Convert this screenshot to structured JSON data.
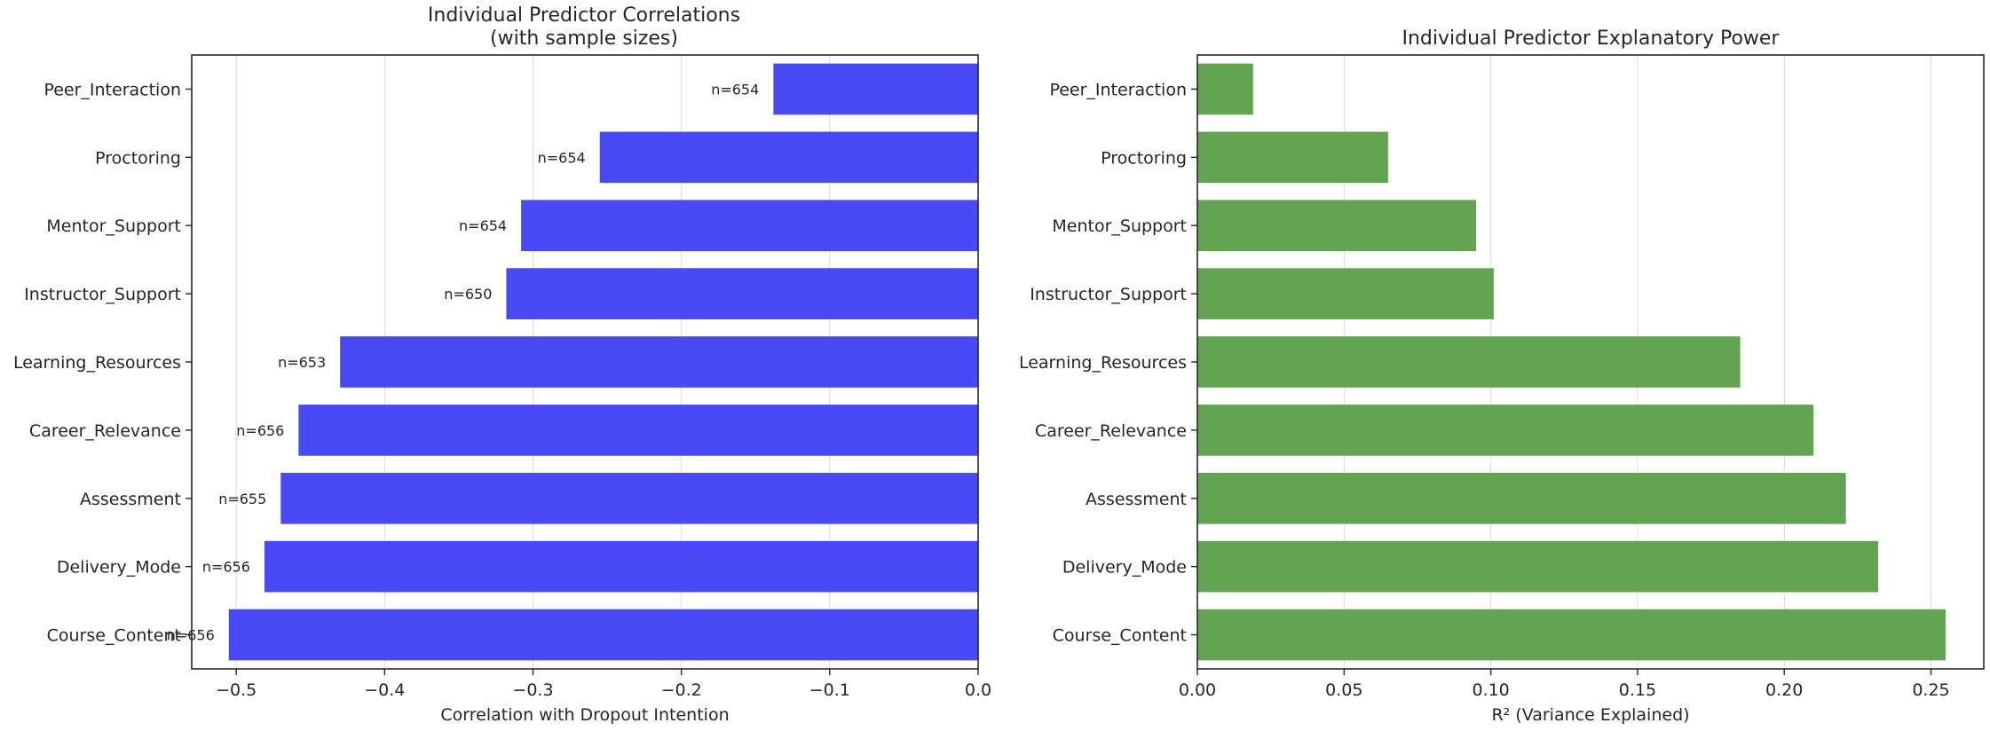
{
  "colors": {
    "left_bars": "#4a4af5",
    "right_bars": "#62a354"
  },
  "chart_data": [
    {
      "type": "bar",
      "orientation": "horizontal",
      "title": "Individual Predictor Correlations",
      "subtitle": "(with sample sizes)",
      "xlabel": "Correlation with Dropout Intention",
      "ylabel": "",
      "xlim": [
        -0.53,
        0.0
      ],
      "xticks": [
        -0.5,
        -0.4,
        -0.3,
        -0.2,
        -0.1,
        0.0
      ],
      "xtick_labels": [
        "−0.5",
        "−0.4",
        "−0.3",
        "−0.2",
        "−0.1",
        "0.0"
      ],
      "grid": true,
      "categories": [
        "Peer_Interaction",
        "Proctoring",
        "Mentor_Support",
        "Instructor_Support",
        "Learning_Resources",
        "Career_Relevance",
        "Assessment",
        "Delivery_Mode",
        "Course_Content"
      ],
      "values": [
        -0.138,
        -0.255,
        -0.308,
        -0.318,
        -0.43,
        -0.458,
        -0.47,
        -0.481,
        -0.505
      ],
      "annotations": [
        "n=654",
        "n=654",
        "n=654",
        "n=650",
        "n=653",
        "n=656",
        "n=655",
        "n=656",
        "n=656"
      ]
    },
    {
      "type": "bar",
      "orientation": "horizontal",
      "title": "Individual Predictor Explanatory Power",
      "xlabel": "R² (Variance Explained)",
      "ylabel": "",
      "xlim": [
        0.0,
        0.268
      ],
      "xticks": [
        0.0,
        0.05,
        0.1,
        0.15,
        0.2,
        0.25
      ],
      "xtick_labels": [
        "0.00",
        "0.05",
        "0.10",
        "0.15",
        "0.20",
        "0.25"
      ],
      "grid": true,
      "categories": [
        "Peer_Interaction",
        "Proctoring",
        "Mentor_Support",
        "Instructor_Support",
        "Learning_Resources",
        "Career_Relevance",
        "Assessment",
        "Delivery_Mode",
        "Course_Content"
      ],
      "values": [
        0.019,
        0.065,
        0.095,
        0.101,
        0.185,
        0.21,
        0.221,
        0.232,
        0.255
      ]
    }
  ]
}
